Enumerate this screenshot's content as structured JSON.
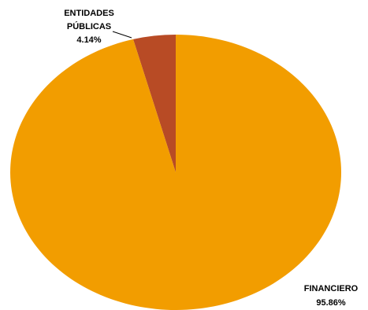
{
  "chart_data": {
    "type": "pie",
    "title": "",
    "slices": [
      {
        "label": "ENTIDADES PÚBLICAS",
        "label_lines": [
          "ENTIDADES",
          "PÚBLICAS"
        ],
        "value": 4.14,
        "value_label": "4.14%",
        "color": "#B84B25"
      },
      {
        "label": "FINANCIERO",
        "label_lines": [
          "FINANCIERO"
        ],
        "value": 95.86,
        "value_label": "95.86%",
        "color": "#F29D00"
      }
    ],
    "start": "12 o'clock",
    "direction": "counterclockwise",
    "legend": "none"
  }
}
